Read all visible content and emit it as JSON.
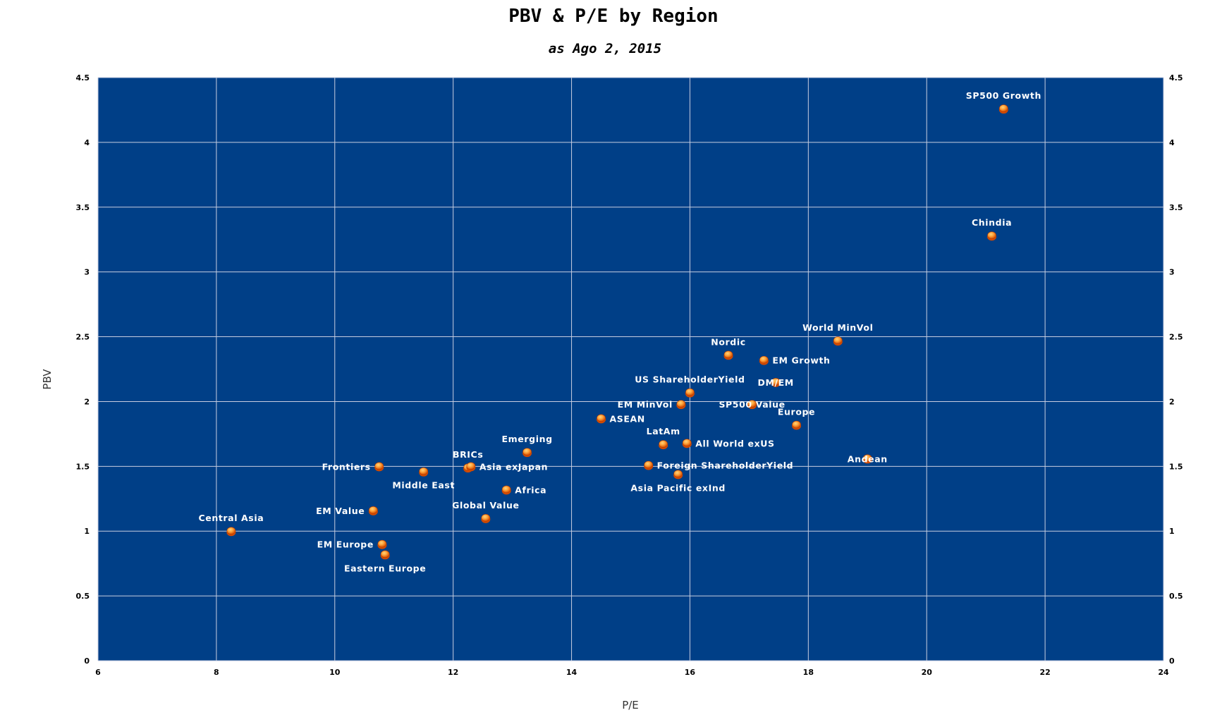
{
  "chart_data": {
    "type": "scatter",
    "title": "PBV & P/E by Region",
    "subtitle": "as Ago 2, 2015",
    "xlabel": "P/E",
    "ylabel": "PBV",
    "xlim": [
      6,
      24
    ],
    "ylim": [
      0,
      4.5
    ],
    "x_ticks": [
      "6",
      "8",
      "10",
      "12",
      "14",
      "16",
      "18",
      "20",
      "22",
      "24"
    ],
    "y_ticks": [
      "0",
      "0.5",
      "1",
      "1.5",
      "2",
      "2.5",
      "3",
      "3.5",
      "4",
      "4.5"
    ],
    "grid": true,
    "legend": "none",
    "colors": {
      "plot_background": "#003f87",
      "grid": "#c8cde0",
      "marker_outer": "#d24a00",
      "marker_inner": "#ffa53c",
      "label": "#ffffff"
    },
    "points": [
      {
        "label": "SP500 Growth",
        "x": 21.3,
        "y": 4.26
      },
      {
        "label": "Chindia",
        "x": 21.1,
        "y": 3.28
      },
      {
        "label": "World MinVol",
        "x": 18.5,
        "y": 2.47
      },
      {
        "label": "Nordic",
        "x": 16.65,
        "y": 2.36
      },
      {
        "label": "EM Growth",
        "x": 17.25,
        "y": 2.32
      },
      {
        "label": "DM/EM",
        "x": 17.45,
        "y": 2.15
      },
      {
        "label": "US ShareholderYield",
        "x": 16.0,
        "y": 2.07
      },
      {
        "label": "EM MinVol",
        "x": 15.85,
        "y": 1.98
      },
      {
        "label": "SP500 Value",
        "x": 17.05,
        "y": 1.98
      },
      {
        "label": "Europe",
        "x": 17.8,
        "y": 1.82
      },
      {
        "label": "ASEAN",
        "x": 14.5,
        "y": 1.87
      },
      {
        "label": "LatAm",
        "x": 15.55,
        "y": 1.67
      },
      {
        "label": "All World exUS",
        "x": 15.95,
        "y": 1.68
      },
      {
        "label": "Andean",
        "x": 19.0,
        "y": 1.56
      },
      {
        "label": "Foreign ShareholderYield",
        "x": 15.3,
        "y": 1.51
      },
      {
        "label": "Asia Pacific exInd",
        "x": 15.8,
        "y": 1.44
      },
      {
        "label": "Emerging",
        "x": 13.25,
        "y": 1.61
      },
      {
        "label": "BRICs",
        "x": 12.25,
        "y": 1.49
      },
      {
        "label": "Asia exJapan",
        "x": 12.3,
        "y": 1.5
      },
      {
        "label": "Frontiers",
        "x": 10.75,
        "y": 1.5
      },
      {
        "label": "Middle East",
        "x": 11.5,
        "y": 1.46
      },
      {
        "label": "Africa",
        "x": 12.9,
        "y": 1.32
      },
      {
        "label": "Global Value",
        "x": 12.55,
        "y": 1.1
      },
      {
        "label": "EM Value",
        "x": 10.65,
        "y": 1.16
      },
      {
        "label": "Central Asia",
        "x": 8.25,
        "y": 1.0
      },
      {
        "label": "EM Europe",
        "x": 10.8,
        "y": 0.9
      },
      {
        "label": "Eastern Europe",
        "x": 10.85,
        "y": 0.82
      }
    ]
  }
}
